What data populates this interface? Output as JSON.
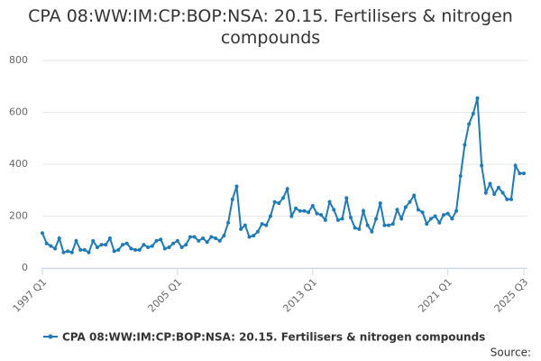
{
  "chart_data": {
    "type": "line",
    "title": "CPA 08:WW:IM:CP:BOP:NSA: 20.15. Fertilisers & nitrogen compounds",
    "source_label": "Source:",
    "categories": [
      "1997 Q1",
      null,
      null,
      null,
      null,
      null,
      null,
      null,
      null,
      null,
      null,
      null,
      null,
      null,
      null,
      null,
      null,
      null,
      null,
      null,
      null,
      null,
      null,
      null,
      null,
      null,
      null,
      null,
      null,
      null,
      null,
      null,
      "2005 Q1",
      null,
      null,
      null,
      null,
      null,
      null,
      null,
      null,
      null,
      null,
      null,
      null,
      null,
      null,
      null,
      null,
      null,
      null,
      null,
      null,
      null,
      null,
      null,
      null,
      null,
      null,
      null,
      null,
      null,
      null,
      null,
      "2013 Q1",
      null,
      null,
      null,
      null,
      null,
      null,
      null,
      null,
      null,
      null,
      null,
      null,
      null,
      null,
      null,
      null,
      null,
      null,
      null,
      null,
      null,
      null,
      null,
      null,
      null,
      null,
      null,
      null,
      null,
      null,
      null,
      "2021 Q1",
      null,
      null,
      null,
      null,
      null,
      null,
      null,
      null,
      null,
      null,
      null,
      null,
      null,
      null,
      null,
      null,
      null,
      "2025 Q3"
    ],
    "series": [
      {
        "name": "CPA 08:WW:IM:CP:BOP:NSA: 20.15. Fertilisers & nitrogen compounds",
        "color": "#1f7ab8",
        "values": [
          135,
          95,
          85,
          75,
          115,
          60,
          65,
          60,
          105,
          70,
          70,
          60,
          105,
          80,
          90,
          90,
          115,
          65,
          70,
          90,
          95,
          75,
          70,
          70,
          90,
          80,
          85,
          105,
          110,
          75,
          80,
          95,
          105,
          80,
          90,
          120,
          120,
          105,
          115,
          100,
          120,
          115,
          105,
          125,
          175,
          265,
          315,
          150,
          165,
          120,
          125,
          140,
          170,
          165,
          200,
          255,
          250,
          270,
          305,
          200,
          230,
          220,
          220,
          215,
          240,
          210,
          205,
          185,
          255,
          225,
          185,
          190,
          270,
          195,
          155,
          150,
          220,
          165,
          140,
          190,
          250,
          165,
          165,
          170,
          225,
          190,
          235,
          255,
          280,
          225,
          215,
          170,
          190,
          200,
          175,
          205,
          210,
          190,
          220,
          355,
          475,
          555,
          595,
          655,
          395,
          290,
          325,
          285,
          310,
          290,
          265,
          265,
          395,
          365,
          365
        ]
      }
    ],
    "ylim": [
      0,
      800
    ],
    "yticks": [
      0,
      200,
      400,
      600,
      800
    ],
    "grid": true
  }
}
